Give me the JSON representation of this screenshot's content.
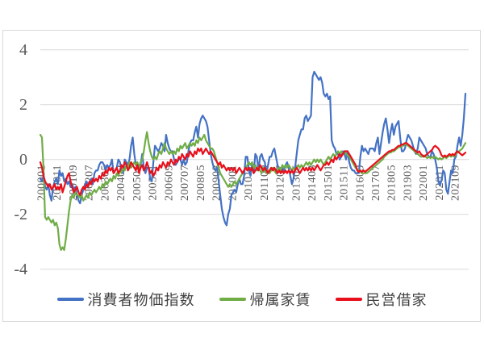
{
  "chart_data": {
    "type": "line",
    "title": "",
    "grid": "horizontal",
    "grid_color": "#d9d9d9",
    "axis_label_color": "#595959",
    "legend_position": "bottom",
    "y_axis": {
      "min": -4,
      "max": 4,
      "ticks": [
        4,
        2,
        0,
        -2,
        -4
      ]
    },
    "x_axis": {
      "start": "2000-01",
      "end": "2022-04",
      "n_points": 268,
      "tick_step_months": 10,
      "tick_labels": [
        "200001",
        "200011",
        "200109",
        "200207",
        "200305",
        "200403",
        "200501",
        "200511",
        "200609",
        "200707",
        "200805",
        "200903",
        "201001",
        "201011",
        "201109",
        "201207",
        "201305",
        "201403",
        "201501",
        "201511",
        "201609",
        "201707",
        "201805",
        "201903",
        "202001",
        "202011",
        "202109"
      ]
    },
    "series": [
      {
        "id": "cpi",
        "name": "消費者物価指数",
        "color": "#4472c4",
        "values": [
          -0.7,
          -0.8,
          -0.6,
          -1.0,
          -1.1,
          -0.9,
          -1.3,
          -1.5,
          -1.0,
          -0.8,
          -0.7,
          -0.9,
          -0.4,
          -0.6,
          -0.5,
          -0.8,
          -0.7,
          -0.9,
          -0.8,
          -1.0,
          -0.9,
          -1.1,
          -1.0,
          -1.3,
          -1.5,
          -1.6,
          -1.3,
          -1.1,
          -0.9,
          -0.8,
          -0.9,
          -0.8,
          -0.7,
          -0.9,
          -0.5,
          -0.4,
          -0.4,
          -0.2,
          -0.1,
          -0.1,
          -0.2,
          -0.4,
          -0.2,
          -0.3,
          -0.2,
          0.0,
          -0.5,
          -0.4,
          -0.3,
          0.0,
          -0.1,
          -0.4,
          -0.5,
          0.0,
          -0.1,
          -0.2,
          0.0,
          0.5,
          0.8,
          0.2,
          -0.2,
          -0.3,
          -0.4,
          -0.2,
          0.2,
          -0.3,
          -0.5,
          -0.3,
          -0.3,
          -0.7,
          -0.8,
          -0.1,
          0.5,
          0.4,
          0.3,
          0.4,
          0.6,
          0.5,
          0.3,
          0.9,
          0.6,
          0.4,
          0.3,
          0.3,
          0.0,
          -0.2,
          -0.1,
          0.0,
          0.0,
          -0.2,
          0.0,
          -0.2,
          -0.1,
          0.3,
          0.6,
          0.7,
          0.7,
          1.0,
          1.2,
          0.8,
          1.3,
          1.5,
          1.6,
          1.5,
          1.4,
          1.2,
          0.7,
          0.2,
          -0.1,
          -0.3,
          -0.4,
          -0.3,
          -0.8,
          -1.3,
          -1.8,
          -2.1,
          -2.3,
          -2.4,
          -2.0,
          -1.8,
          -1.3,
          -1.2,
          -1.1,
          -1.2,
          -0.9,
          -0.7,
          -0.9,
          -0.9,
          -0.6,
          0.1,
          0.1,
          -0.4,
          -0.6,
          -0.2,
          -0.5,
          0.2,
          0.1,
          -0.4,
          0.1,
          0.2,
          0.0,
          -0.1,
          -0.5,
          -0.2,
          0.1,
          0.1,
          0.3,
          0.4,
          0.1,
          -0.2,
          -0.4,
          -0.5,
          -0.3,
          -0.4,
          -0.2,
          -0.1,
          -0.3,
          -0.6,
          -0.9,
          -0.7,
          -0.3,
          0.2,
          0.7,
          0.9,
          1.1,
          1.1,
          1.5,
          1.6,
          1.4,
          1.5,
          1.6,
          3.0,
          3.2,
          3.1,
          3.0,
          2.9,
          3.0,
          2.8,
          2.4,
          2.3,
          2.4,
          2.2,
          2.3,
          0.7,
          0.5,
          0.4,
          0.2,
          0.2,
          0.0,
          0.1,
          0.3,
          0.2,
          0.0,
          0.3,
          -0.1,
          -0.3,
          -0.4,
          -0.4,
          -0.5,
          -0.5,
          -0.5,
          0.1,
          0.5,
          0.3,
          0.4,
          0.3,
          0.2,
          0.4,
          0.4,
          0.4,
          0.3,
          0.6,
          0.8,
          0.2,
          0.6,
          1.0,
          1.3,
          1.5,
          1.1,
          0.6,
          1.0,
          1.3,
          0.9,
          1.2,
          1.3,
          1.4,
          0.8,
          0.3,
          0.3,
          0.4,
          0.7,
          0.9,
          0.8,
          0.7,
          0.5,
          0.3,
          0.2,
          0.4,
          0.8,
          0.7,
          0.6,
          0.5,
          0.4,
          0.2,
          0.1,
          0.1,
          0.3,
          0.2,
          0.0,
          -0.3,
          -0.8,
          -0.95,
          -0.75,
          -0.4,
          -0.5,
          -1.1,
          -1.25,
          -0.8,
          -0.4,
          -0.5,
          0.0,
          0.1,
          0.5,
          0.8,
          0.5,
          0.9,
          1.5,
          2.4
        ]
      },
      {
        "id": "imputed-rent",
        "name": "帰属家賃",
        "color": "#70ad47",
        "values": [
          0.9,
          0.8,
          -0.3,
          -2.1,
          -2.2,
          -2.1,
          -2.2,
          -2.3,
          -2.2,
          -2.4,
          -2.3,
          -2.5,
          -3.1,
          -3.3,
          -3.2,
          -3.3,
          -2.9,
          -2.4,
          -1.9,
          -1.5,
          -1.3,
          -1.4,
          -1.2,
          -1.3,
          -1.3,
          -1.4,
          -1.3,
          -1.5,
          -1.4,
          -1.3,
          -1.4,
          -1.2,
          -1.3,
          -1.2,
          -1.1,
          -1.2,
          -1.1,
          -1.0,
          -1.1,
          -0.9,
          -1.0,
          -0.8,
          -0.9,
          -0.8,
          -0.7,
          -0.8,
          -0.6,
          -0.7,
          -0.5,
          -0.6,
          -0.4,
          -0.5,
          -0.3,
          -0.4,
          -0.2,
          -0.3,
          -0.1,
          -0.3,
          -0.2,
          -0.1,
          -0.2,
          -0.1,
          -0.3,
          -0.1,
          0.0,
          0.3,
          0.7,
          1.0,
          0.6,
          0.3,
          0.1,
          0.0,
          0.1,
          0.0,
          0.2,
          0.3,
          0.2,
          0.4,
          0.6,
          0.4,
          0.3,
          0.2,
          0.3,
          0.2,
          0.3,
          0.2,
          0.4,
          0.3,
          0.5,
          0.4,
          0.5,
          0.6,
          0.4,
          0.5,
          0.6,
          0.5,
          0.6,
          0.5,
          0.7,
          0.6,
          0.8,
          0.7,
          0.8,
          0.9,
          0.7,
          0.6,
          0.5,
          0.4,
          0.4,
          0.3,
          0.1,
          -0.1,
          -0.3,
          -0.5,
          -0.6,
          -0.7,
          -0.8,
          -0.9,
          -1.0,
          -0.9,
          -1.0,
          -0.9,
          -0.8,
          -0.9,
          -0.8,
          -0.7,
          -0.6,
          -0.5,
          -0.4,
          -0.3,
          -0.2,
          -0.1,
          -0.2,
          -0.1,
          -0.3,
          -0.2,
          -0.4,
          -0.3,
          -0.4,
          -0.5,
          -0.3,
          -0.4,
          -0.5,
          -0.4,
          -0.5,
          -0.4,
          -0.3,
          -0.4,
          -0.5,
          -0.4,
          -0.3,
          -0.4,
          -0.2,
          -0.3,
          -0.2,
          -0.3,
          -0.2,
          -0.3,
          -0.4,
          -0.3,
          -0.4,
          -0.3,
          -0.2,
          -0.3,
          -0.2,
          -0.3,
          -0.2,
          -0.1,
          -0.2,
          -0.1,
          -0.2,
          -0.1,
          0.0,
          -0.1,
          0.0,
          -0.1,
          0.0,
          -0.1,
          -0.2,
          -0.1,
          0.0,
          0.1,
          0.0,
          0.1,
          0.2,
          0.1,
          0.2,
          0.3,
          0.2,
          0.3,
          0.2,
          0.3,
          0.2,
          0.15,
          0.1,
          0.0,
          -0.1,
          -0.2,
          -0.3,
          -0.35,
          -0.4,
          -0.45,
          -0.5,
          -0.5,
          -0.5,
          -0.5,
          -0.45,
          -0.4,
          -0.35,
          -0.3,
          -0.25,
          -0.2,
          -0.15,
          -0.1,
          -0.05,
          0.0,
          0.1,
          0.15,
          0.2,
          0.25,
          0.25,
          0.3,
          0.3,
          0.35,
          0.4,
          0.45,
          0.45,
          0.5,
          0.5,
          0.55,
          0.55,
          0.5,
          0.45,
          0.4,
          0.35,
          0.3,
          0.25,
          0.2,
          0.15,
          0.1,
          0.1,
          0.15,
          0.1,
          0.05,
          0.1,
          0.05,
          0.1,
          0.05,
          0.1,
          0.05,
          0.0,
          0.05,
          0.0,
          0.05,
          0.1,
          0.05,
          0.1,
          0.15,
          0.1,
          0.15,
          0.1,
          0.2,
          0.25,
          0.3,
          0.35,
          0.4,
          0.5,
          0.6
        ]
      },
      {
        "id": "private-rent",
        "name": "民営借家",
        "color": "#e8101c",
        "values": [
          -0.1,
          -0.3,
          -0.6,
          -0.8,
          -0.9,
          -1.0,
          -0.9,
          -1.1,
          -1.0,
          -0.9,
          -1.1,
          -1.0,
          -1.1,
          -0.9,
          -1.2,
          -1.0,
          -0.8,
          -0.6,
          -0.5,
          -0.8,
          -1.0,
          -1.2,
          -1.1,
          -1.0,
          -1.2,
          -1.3,
          -1.1,
          -1.0,
          -1.1,
          -0.9,
          -1.0,
          -0.8,
          -0.9,
          -0.7,
          -0.8,
          -0.7,
          -0.8,
          -0.6,
          -0.7,
          -0.5,
          -0.6,
          -0.4,
          -0.5,
          -0.3,
          -0.4,
          -0.3,
          -0.5,
          -0.4,
          -0.3,
          -0.5,
          -0.4,
          -0.2,
          -0.3,
          -0.1,
          -0.2,
          -0.4,
          -0.3,
          -0.1,
          -0.2,
          -0.3,
          -0.4,
          -0.2,
          -0.5,
          -0.3,
          -0.2,
          -0.4,
          -0.3,
          -0.1,
          -0.3,
          -0.5,
          -0.4,
          -0.6,
          -0.5,
          -0.3,
          -0.4,
          -0.2,
          -0.3,
          -0.1,
          -0.2,
          -0.3,
          -0.1,
          -0.2,
          0.0,
          -0.1,
          -0.2,
          0.0,
          -0.1,
          0.1,
          0.0,
          0.2,
          0.1,
          0.0,
          0.2,
          0.1,
          0.3,
          0.2,
          0.1,
          0.3,
          0.2,
          0.4,
          0.3,
          0.4,
          0.2,
          0.3,
          0.4,
          0.3,
          0.2,
          0.3,
          0.2,
          0.1,
          0.0,
          -0.1,
          -0.2,
          -0.1,
          -0.3,
          -0.2,
          -0.3,
          -0.4,
          -0.3,
          -0.4,
          -0.3,
          -0.4,
          -0.3,
          -0.5,
          -0.4,
          -0.3,
          -0.4,
          -0.5,
          -0.4,
          -0.3,
          -0.4,
          -0.3,
          -0.4,
          -0.3,
          -0.5,
          -0.4,
          -0.3,
          -0.4,
          -0.2,
          -0.3,
          -0.4,
          -0.3,
          -0.4,
          -0.5,
          -0.4,
          -0.3,
          -0.4,
          -0.3,
          -0.4,
          -0.5,
          -0.4,
          -0.5,
          -0.4,
          -0.5,
          -0.4,
          -0.5,
          -0.4,
          -0.5,
          -0.4,
          -0.5,
          -0.4,
          -0.3,
          -0.4,
          -0.5,
          -0.4,
          -0.3,
          -0.4,
          -0.3,
          -0.4,
          -0.3,
          -0.4,
          -0.3,
          -0.4,
          -0.3,
          -0.2,
          -0.3,
          -0.4,
          -0.3,
          -0.2,
          -0.2,
          -0.1,
          -0.2,
          -0.1,
          0.0,
          -0.1,
          0.1,
          0.0,
          0.1,
          0.2,
          0.1,
          0.2,
          0.3,
          0.3,
          0.3,
          0.2,
          0.1,
          0.0,
          -0.1,
          -0.2,
          -0.4,
          -0.45,
          -0.4,
          -0.45,
          -0.4,
          -0.45,
          -0.4,
          -0.35,
          -0.3,
          -0.25,
          -0.2,
          -0.15,
          -0.1,
          -0.05,
          0.0,
          0.05,
          0.1,
          0.15,
          0.2,
          0.25,
          0.3,
          0.3,
          0.35,
          0.35,
          0.4,
          0.45,
          0.5,
          0.5,
          0.55,
          0.55,
          0.6,
          0.6,
          0.55,
          0.5,
          0.45,
          0.4,
          0.35,
          0.3,
          0.25,
          0.3,
          0.2,
          0.15,
          0.1,
          0.15,
          0.2,
          0.25,
          0.3,
          0.35,
          0.45,
          0.5,
          0.45,
          0.4,
          0.3,
          0.15,
          0.1,
          0.15,
          0.1,
          0.15,
          0.2,
          0.15,
          0.2,
          0.15,
          0.25,
          0.3,
          0.25,
          0.2,
          0.15,
          0.2,
          0.25
        ]
      }
    ]
  },
  "legend": {
    "items": [
      {
        "label": "消費者物価指数",
        "color": "#4472c4"
      },
      {
        "label": "帰属家賃",
        "color": "#70ad47"
      },
      {
        "label": "民営借家",
        "color": "#e8101c"
      }
    ]
  }
}
